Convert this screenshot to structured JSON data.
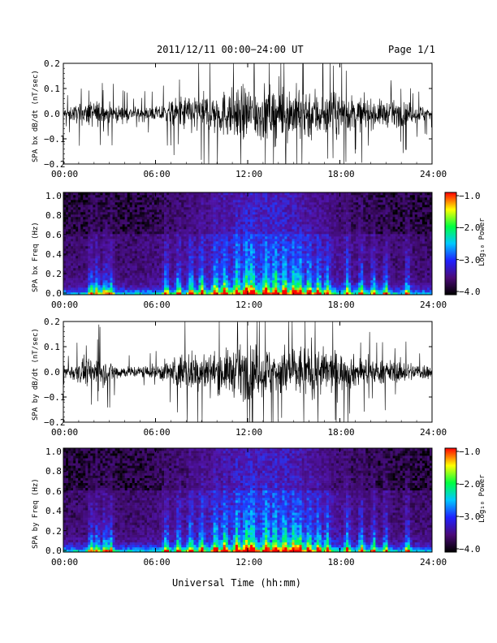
{
  "header": {
    "title": "2011/12/11   00:00−24:00 UT",
    "page": "Page 1/1"
  },
  "footer": {
    "xlabel": "Universal Time (hh:mm)"
  },
  "colorbar": {
    "title": "Log₁₀ Power",
    "ticks": [
      "−1.0",
      "−2.0",
      "−3.0",
      "−4.0"
    ],
    "range": [
      -4.0,
      -1.0
    ],
    "colors": [
      "#000000",
      "#4b0a78",
      "#1f20ff",
      "#00c8ff",
      "#00ff40",
      "#ffff00",
      "#ff0000"
    ]
  },
  "chart_data": [
    {
      "type": "line",
      "ylabel": "SPA bx dB/dt (nT/sec)",
      "xlim": [
        "00:00",
        "24:00"
      ],
      "ylim": [
        -0.2,
        0.2
      ],
      "xticks": [
        "00:00",
        "06:00",
        "12:00",
        "18:00",
        "24:00"
      ],
      "yticks": [
        "0.2",
        "0.1",
        "0.0",
        "−0.1",
        "−0.2"
      ],
      "series": [
        {
          "x_hours": [
            0,
            2,
            4,
            6,
            8,
            10,
            12,
            14,
            16,
            18,
            20,
            22,
            24
          ],
          "envelope_amplitude": [
            0.04,
            0.1,
            0.05,
            0.05,
            0.14,
            0.16,
            0.2,
            0.2,
            0.2,
            0.15,
            0.1,
            0.09,
            0.05
          ]
        }
      ],
      "color": "#000000"
    },
    {
      "type": "heatmap",
      "ylabel": "SPA bx Freq (Hz)",
      "xlim": [
        "00:00",
        "24:00"
      ],
      "ylim": [
        0.0,
        1.0
      ],
      "xticks": [
        "00:00",
        "06:00",
        "12:00",
        "18:00",
        "24:00"
      ],
      "yticks": [
        "1.0",
        "0.8",
        "0.6",
        "0.4",
        "0.2",
        "0.0"
      ],
      "zlabel": "Log₁₀ Power",
      "zlim": [
        -4.0,
        -1.0
      ]
    },
    {
      "type": "line",
      "ylabel": "SPA by dB/dt (nT/sec)",
      "xlim": [
        "00:00",
        "24:00"
      ],
      "ylim": [
        -0.2,
        0.2
      ],
      "xticks": [
        "00:00",
        "06:00",
        "12:00",
        "18:00",
        "24:00"
      ],
      "yticks": [
        "0.2",
        "0.1",
        "0.0",
        "−0.1",
        "−0.2"
      ],
      "series": [
        {
          "x_hours": [
            0,
            2,
            4,
            6,
            8,
            10,
            12,
            14,
            16,
            18,
            20,
            22,
            24
          ],
          "envelope_amplitude": [
            0.04,
            0.12,
            0.04,
            0.05,
            0.15,
            0.14,
            0.2,
            0.18,
            0.2,
            0.14,
            0.09,
            0.08,
            0.05
          ]
        }
      ],
      "color": "#000000"
    },
    {
      "type": "heatmap",
      "ylabel": "SPA by Freq (Hz)",
      "xlim": [
        "00:00",
        "24:00"
      ],
      "ylim": [
        0.0,
        1.0
      ],
      "xticks": [
        "00:00",
        "06:00",
        "12:00",
        "18:00",
        "24:00"
      ],
      "yticks": [
        "1.0",
        "0.8",
        "0.6",
        "0.4",
        "0.2",
        "0.0"
      ],
      "zlabel": "Log₁₀ Power",
      "zlim": [
        -4.0,
        -1.0
      ]
    }
  ]
}
